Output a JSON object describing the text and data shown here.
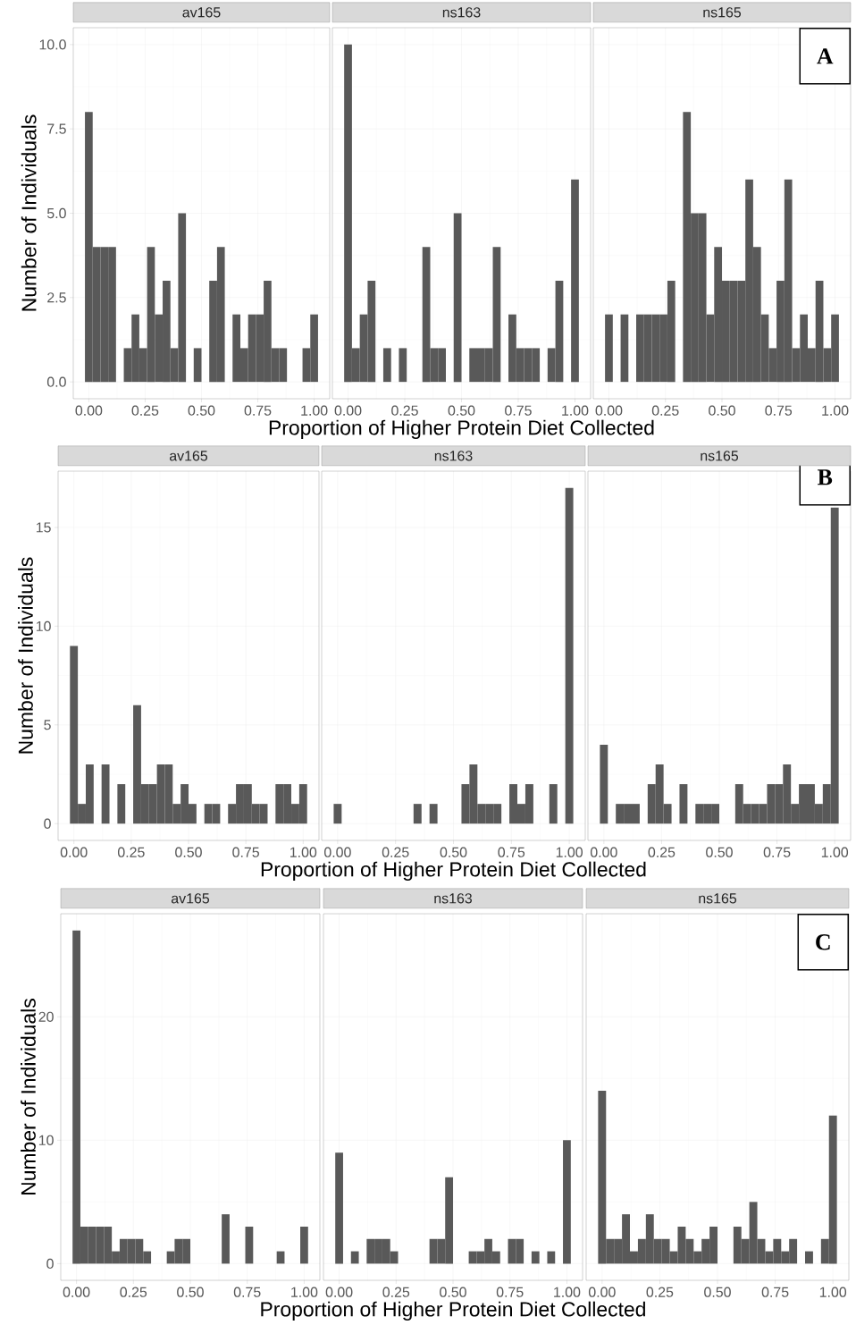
{
  "chart_data": [
    {
      "type": "histogram",
      "title": "av165",
      "ylabel": "Number of Individuals",
      "color": "#595959",
      "grid": true,
      "bins": [
        -0.0172,
        0.0172,
        0.0517,
        0.0862,
        0.1207,
        0.1552,
        0.1897,
        0.2241,
        0.2586,
        0.2931,
        0.3276,
        0.3621,
        0.3966,
        0.431,
        0.4655,
        0.5,
        0.5345,
        0.569,
        0.6034,
        0.6379,
        0.6724,
        0.7069,
        0.7414,
        0.7759,
        0.8103,
        0.8448,
        0.8793,
        0.9138,
        0.9483,
        0.9828,
        1.0172
      ],
      "values": [
        8,
        4,
        4,
        4,
        0,
        1,
        2,
        1,
        4,
        2,
        3,
        1,
        5,
        0,
        1,
        0,
        3,
        4,
        0,
        2,
        1,
        2,
        2,
        3,
        1,
        1,
        0,
        0,
        1,
        2
      ],
      "xlim": [
        -0.069,
        1.069
      ],
      "ylim": [
        -0.5,
        10.5
      ],
      "xticks": [
        {
          "value": 0,
          "label": "0.00"
        },
        {
          "value": 0.25,
          "label": "0.25"
        },
        {
          "value": 0.5,
          "label": "0.50"
        },
        {
          "value": 0.75,
          "label": "0.75"
        },
        {
          "value": 1,
          "label": "1.00"
        }
      ],
      "yticks": [
        {
          "value": 0,
          "label": "0.0"
        },
        {
          "value": 2.5,
          "label": "2.5"
        },
        {
          "value": 5,
          "label": "5.0"
        },
        {
          "value": 7.5,
          "label": "7.5"
        },
        {
          "value": 10,
          "label": "10.0"
        }
      ]
    },
    {
      "type": "histogram",
      "title": "ns163",
      "xlabel": "Proportion of Higher Protein Diet Collected",
      "color": "#595959",
      "grid": true,
      "tick_labels": "x",
      "bins": [
        -0.0172,
        0.0172,
        0.0517,
        0.0862,
        0.1207,
        0.1552,
        0.1897,
        0.2241,
        0.2586,
        0.2931,
        0.3276,
        0.3621,
        0.3966,
        0.431,
        0.4655,
        0.5,
        0.5345,
        0.569,
        0.6034,
        0.6379,
        0.6724,
        0.7069,
        0.7414,
        0.7759,
        0.8103,
        0.8448,
        0.8793,
        0.9138,
        0.9483,
        0.9828,
        1.0172
      ],
      "values": [
        10,
        1,
        2,
        3,
        0,
        1,
        0,
        1,
        0,
        0,
        4,
        1,
        1,
        0,
        5,
        0,
        1,
        1,
        1,
        4,
        0,
        2,
        1,
        1,
        1,
        0,
        1,
        3,
        0,
        6
      ],
      "xlim": [
        -0.069,
        1.069
      ],
      "ylim": [
        -0.5,
        10.5
      ],
      "xticks": [
        {
          "value": 0,
          "label": "0.00"
        },
        {
          "value": 0.25,
          "label": "0.25"
        },
        {
          "value": 0.5,
          "label": "0.50"
        },
        {
          "value": 0.75,
          "label": "0.75"
        },
        {
          "value": 1,
          "label": "1.00"
        }
      ],
      "yticks": [
        0,
        2.5,
        5,
        7.5,
        10
      ]
    },
    {
      "type": "histogram",
      "title": "ns165",
      "annotations": [
        "A"
      ],
      "color": "#595959",
      "grid": true,
      "tick_labels": "x",
      "bins": [
        -0.0172,
        0.0172,
        0.0517,
        0.0862,
        0.1207,
        0.1552,
        0.1897,
        0.2241,
        0.2586,
        0.2931,
        0.3276,
        0.3621,
        0.3966,
        0.431,
        0.4655,
        0.5,
        0.5345,
        0.569,
        0.6034,
        0.6379,
        0.6724,
        0.7069,
        0.7414,
        0.7759,
        0.8103,
        0.8448,
        0.8793,
        0.9138,
        0.9483,
        0.9828,
        1.0172
      ],
      "values": [
        2,
        0,
        2,
        0,
        2,
        2,
        2,
        2,
        3,
        0,
        8,
        5,
        5,
        2,
        4,
        3,
        3,
        3,
        6,
        4,
        2,
        1,
        3,
        6,
        1,
        2,
        1,
        3,
        1,
        2
      ],
      "xlim": [
        -0.069,
        1.069
      ],
      "ylim": [
        -0.5,
        10.5
      ],
      "xticks": [
        {
          "value": 0,
          "label": "0.00"
        },
        {
          "value": 0.25,
          "label": "0.25"
        },
        {
          "value": 0.5,
          "label": "0.50"
        },
        {
          "value": 0.75,
          "label": "0.75"
        },
        {
          "value": 1,
          "label": "1.00"
        }
      ],
      "yticks": [
        0,
        2.5,
        5,
        7.5,
        10
      ]
    },
    {
      "type": "histogram",
      "title": "av165",
      "ylabel": "Number of Individuals",
      "color": "#595959",
      "grid": true,
      "bins": [
        -0.0172,
        0.0172,
        0.0517,
        0.0862,
        0.1207,
        0.1552,
        0.1897,
        0.2241,
        0.2586,
        0.2931,
        0.3276,
        0.3621,
        0.3966,
        0.431,
        0.4655,
        0.5,
        0.5345,
        0.569,
        0.6034,
        0.6379,
        0.6724,
        0.7069,
        0.7414,
        0.7759,
        0.8103,
        0.8448,
        0.8793,
        0.9138,
        0.9483,
        0.9828,
        1.0172
      ],
      "values": [
        9,
        1,
        3,
        0,
        3,
        0,
        2,
        0,
        6,
        2,
        2,
        3,
        3,
        1,
        2,
        1,
        0,
        1,
        1,
        0,
        1,
        2,
        2,
        1,
        1,
        0,
        2,
        2,
        1,
        2
      ],
      "xlim": [
        -0.069,
        1.069
      ],
      "ylim": [
        -0.85,
        17.85
      ],
      "xticks": [
        {
          "value": 0,
          "label": "0.00"
        },
        {
          "value": 0.25,
          "label": "0.25"
        },
        {
          "value": 0.5,
          "label": "0.50"
        },
        {
          "value": 0.75,
          "label": "0.75"
        },
        {
          "value": 1,
          "label": "1.00"
        }
      ],
      "yticks": [
        0,
        5,
        10,
        15
      ]
    },
    {
      "type": "histogram",
      "title": "ns163",
      "xlabel": "Proportion of Higher Protein Diet Collected",
      "color": "#595959",
      "grid": true,
      "tick_labels": "x",
      "bins": [
        -0.0172,
        0.0172,
        0.0517,
        0.0862,
        0.1207,
        0.1552,
        0.1897,
        0.2241,
        0.2586,
        0.2931,
        0.3276,
        0.3621,
        0.3966,
        0.431,
        0.4655,
        0.5,
        0.5345,
        0.569,
        0.6034,
        0.6379,
        0.6724,
        0.7069,
        0.7414,
        0.7759,
        0.8103,
        0.8448,
        0.8793,
        0.9138,
        0.9483,
        0.9828,
        1.0172
      ],
      "values": [
        1,
        0,
        0,
        0,
        0,
        0,
        0,
        0,
        0,
        0,
        1,
        0,
        1,
        0,
        0,
        0,
        2,
        3,
        1,
        1,
        1,
        0,
        2,
        1,
        2,
        0,
        0,
        2,
        0,
        17
      ],
      "xlim": [
        -0.069,
        1.069
      ],
      "ylim": [
        -0.85,
        17.85
      ],
      "xticks": [
        {
          "value": 0,
          "label": "0.00"
        },
        {
          "value": 0.25,
          "label": "0.25"
        },
        {
          "value": 0.5,
          "label": "0.50"
        },
        {
          "value": 0.75,
          "label": "0.75"
        },
        {
          "value": 1,
          "label": "1.00"
        }
      ],
      "yticks": [
        0,
        5,
        10,
        15
      ]
    },
    {
      "type": "histogram",
      "title": "ns165",
      "annotations": [
        "B"
      ],
      "color": "#595959",
      "grid": true,
      "tick_labels": "x",
      "bins": [
        -0.0172,
        0.0172,
        0.0517,
        0.0862,
        0.1207,
        0.1552,
        0.1897,
        0.2241,
        0.2586,
        0.2931,
        0.3276,
        0.3621,
        0.3966,
        0.431,
        0.4655,
        0.5,
        0.5345,
        0.569,
        0.6034,
        0.6379,
        0.6724,
        0.7069,
        0.7414,
        0.7759,
        0.8103,
        0.8448,
        0.8793,
        0.9138,
        0.9483,
        0.9828,
        1.0172
      ],
      "values": [
        4,
        0,
        1,
        1,
        1,
        0,
        2,
        3,
        1,
        0,
        2,
        0,
        1,
        1,
        1,
        0,
        0,
        2,
        1,
        1,
        1,
        2,
        2,
        3,
        1,
        2,
        2,
        1,
        2,
        16
      ],
      "xlim": [
        -0.069,
        1.069
      ],
      "ylim": [
        -0.85,
        17.85
      ],
      "xticks": [
        {
          "value": 0,
          "label": "0.00"
        },
        {
          "value": 0.25,
          "label": "0.25"
        },
        {
          "value": 0.5,
          "label": "0.50"
        },
        {
          "value": 0.75,
          "label": "0.75"
        },
        {
          "value": 1,
          "label": "1.00"
        }
      ],
      "yticks": [
        0,
        5,
        10,
        15
      ]
    },
    {
      "type": "histogram",
      "title": "av165",
      "ylabel": "Number of Individuals",
      "color": "#595959",
      "grid": true,
      "bins": [
        -0.0172,
        0.0172,
        0.0517,
        0.0862,
        0.1207,
        0.1552,
        0.1897,
        0.2241,
        0.2586,
        0.2931,
        0.3276,
        0.3621,
        0.3966,
        0.431,
        0.4655,
        0.5,
        0.5345,
        0.569,
        0.6034,
        0.6379,
        0.6724,
        0.7069,
        0.7414,
        0.7759,
        0.8103,
        0.8448,
        0.8793,
        0.9138,
        0.9483,
        0.9828,
        1.0172
      ],
      "values": [
        27,
        3,
        3,
        3,
        3,
        1,
        2,
        2,
        2,
        1,
        0,
        0,
        1,
        2,
        2,
        0,
        0,
        0,
        0,
        4,
        0,
        0,
        3,
        0,
        0,
        0,
        1,
        0,
        0,
        3
      ],
      "xlim": [
        -0.069,
        1.069
      ],
      "ylim": [
        -1.35,
        28.35
      ],
      "xticks": [
        {
          "value": 0,
          "label": "0.00"
        },
        {
          "value": 0.25,
          "label": "0.25"
        },
        {
          "value": 0.5,
          "label": "0.50"
        },
        {
          "value": 0.75,
          "label": "0.75"
        },
        {
          "value": 1,
          "label": "1.00"
        }
      ],
      "yticks": [
        0,
        10,
        20
      ]
    },
    {
      "type": "histogram",
      "title": "ns163",
      "xlabel": "Proportion of Higher Protein Diet Collected",
      "color": "#595959",
      "grid": true,
      "tick_labels": "x",
      "bins": [
        -0.0172,
        0.0172,
        0.0517,
        0.0862,
        0.1207,
        0.1552,
        0.1897,
        0.2241,
        0.2586,
        0.2931,
        0.3276,
        0.3621,
        0.3966,
        0.431,
        0.4655,
        0.5,
        0.5345,
        0.569,
        0.6034,
        0.6379,
        0.6724,
        0.7069,
        0.7414,
        0.7759,
        0.8103,
        0.8448,
        0.8793,
        0.9138,
        0.9483,
        0.9828,
        1.0172
      ],
      "values": [
        9,
        0,
        1,
        0,
        2,
        2,
        2,
        1,
        0,
        0,
        0,
        0,
        2,
        2,
        7,
        0,
        0,
        1,
        1,
        2,
        1,
        0,
        2,
        2,
        0,
        1,
        0,
        1,
        0,
        10
      ],
      "xlim": [
        -0.069,
        1.069
      ],
      "ylim": [
        -1.35,
        28.35
      ],
      "xticks": [
        {
          "value": 0,
          "label": "0.00"
        },
        {
          "value": 0.25,
          "label": "0.25"
        },
        {
          "value": 0.5,
          "label": "0.50"
        },
        {
          "value": 0.75,
          "label": "0.75"
        },
        {
          "value": 1,
          "label": "1.00"
        }
      ],
      "yticks": [
        0,
        10,
        20
      ]
    },
    {
      "type": "histogram",
      "title": "ns165",
      "annotations": [
        "C"
      ],
      "color": "#595959",
      "grid": true,
      "tick_labels": "x",
      "bins": [
        -0.0172,
        0.0172,
        0.0517,
        0.0862,
        0.1207,
        0.1552,
        0.1897,
        0.2241,
        0.2586,
        0.2931,
        0.3276,
        0.3621,
        0.3966,
        0.431,
        0.4655,
        0.5,
        0.5345,
        0.569,
        0.6034,
        0.6379,
        0.6724,
        0.7069,
        0.7414,
        0.7759,
        0.8103,
        0.8448,
        0.8793,
        0.9138,
        0.9483,
        0.9828,
        1.0172
      ],
      "values": [
        14,
        2,
        2,
        4,
        1,
        2,
        4,
        2,
        2,
        1,
        3,
        2,
        1,
        2,
        3,
        0,
        0,
        3,
        2,
        5,
        2,
        1,
        2,
        1,
        2,
        0,
        1,
        0,
        2,
        12
      ],
      "xlim": [
        -0.069,
        1.069
      ],
      "ylim": [
        -1.35,
        28.35
      ],
      "xticks": [
        {
          "value": 0,
          "label": "0.00"
        },
        {
          "value": 0.25,
          "label": "0.25"
        },
        {
          "value": 0.5,
          "label": "0.50"
        },
        {
          "value": 0.75,
          "label": "0.75"
        },
        {
          "value": 1,
          "label": "1.00"
        }
      ],
      "yticks": [
        0,
        10,
        20
      ]
    }
  ]
}
